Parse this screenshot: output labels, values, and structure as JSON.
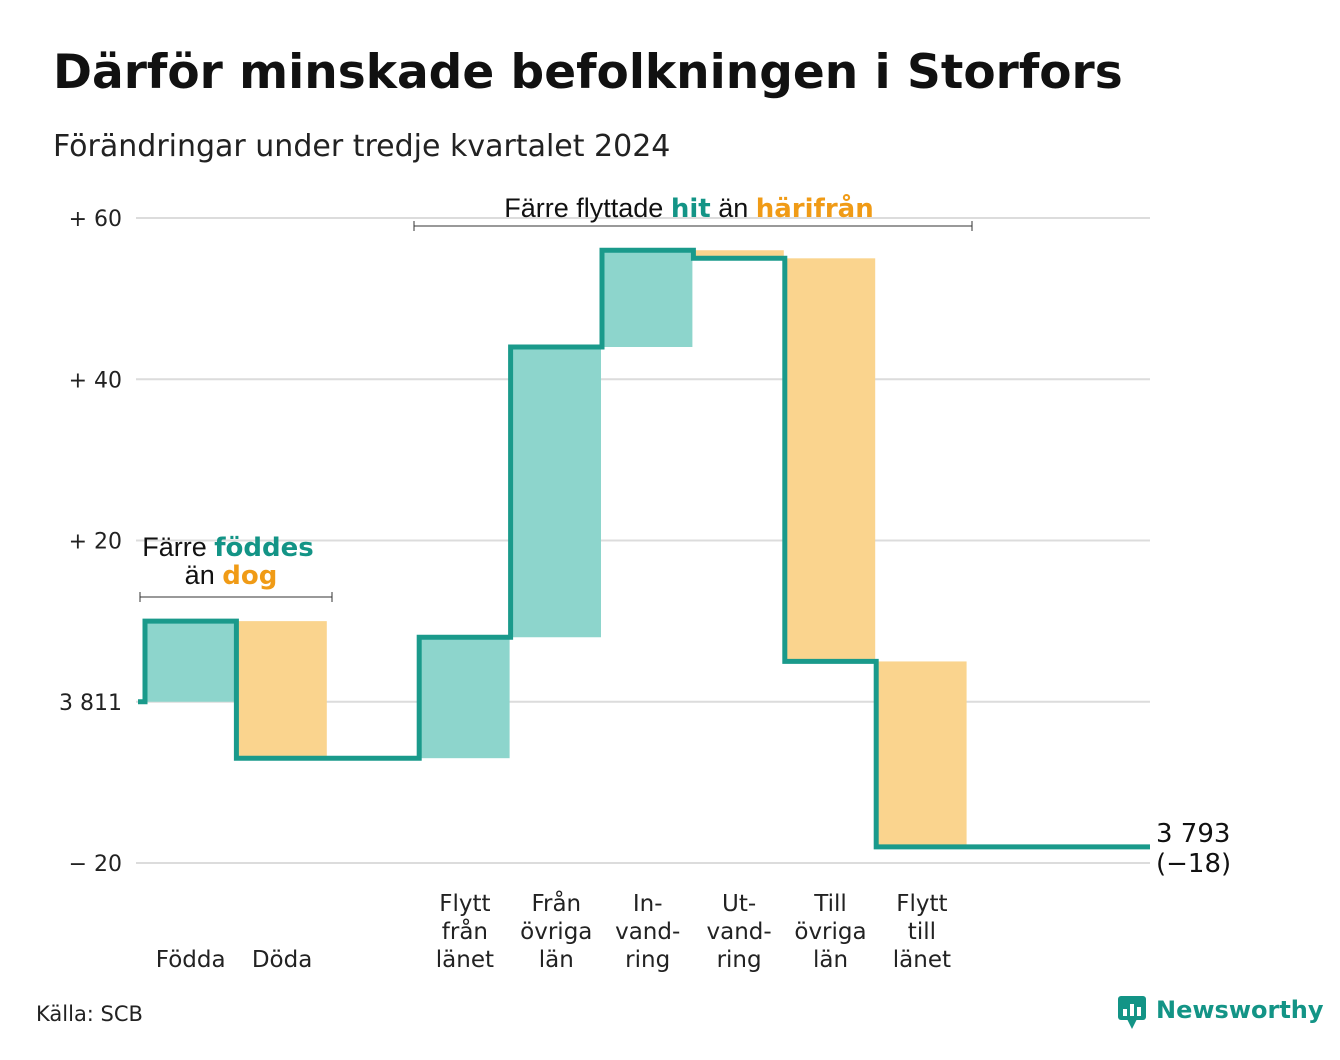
{
  "title": "Därför minskade befolkningen i Storfors",
  "subtitle": "Förändringar under tredje kvartalet 2024",
  "source": "Källa: SCB",
  "brand": "Newsworthy",
  "colors": {
    "gain_fill": "#8dd5cc",
    "loss_fill": "#fad48e",
    "line": "#1a9a8b",
    "teal_text": "#139486",
    "orange_text": "#f09b16",
    "grid": "#dcdcdc"
  },
  "annotations": {
    "births": {
      "line1_a": "Färre ",
      "line1_b": "föddes",
      "line2_a": "än ",
      "line2_b": "dog"
    },
    "moves": {
      "part_a": "Färre flyttade ",
      "part_b": "hit",
      "part_c": " än ",
      "part_d": "härifrån"
    }
  },
  "end_label": {
    "value": "3 793",
    "change": "(−18)"
  },
  "chart_data": {
    "type": "waterfall",
    "title": "Därför minskade befolkningen i Storfors",
    "subtitle": "Förändringar under tredje kvartalet 2024",
    "start_value": 3811,
    "end_value": 3793,
    "net_change": -18,
    "ylim": [
      -20,
      60
    ],
    "y_ticks": [
      {
        "value": -20,
        "label": "− 20"
      },
      {
        "value": 0,
        "label": "3 811"
      },
      {
        "value": 20,
        "label": "+ 20"
      },
      {
        "value": 40,
        "label": "+ 40"
      },
      {
        "value": 60,
        "label": "+ 60"
      }
    ],
    "grid": true,
    "steps": [
      {
        "category": "Födda",
        "label_lines": [
          "Födda"
        ],
        "change": 10,
        "kind": "gain"
      },
      {
        "category": "Döda",
        "label_lines": [
          "Döda"
        ],
        "change": -17,
        "kind": "loss"
      },
      {
        "category": "",
        "label_lines": [],
        "change": 0,
        "kind": "gap"
      },
      {
        "category": "Flytt från länet",
        "label_lines": [
          "Flytt",
          "från",
          "länet"
        ],
        "change": 15,
        "kind": "gain"
      },
      {
        "category": "Från övriga län",
        "label_lines": [
          "Från",
          "övriga",
          "län"
        ],
        "change": 36,
        "kind": "gain"
      },
      {
        "category": "Invandring",
        "label_lines": [
          "In-",
          "vand-",
          "ring"
        ],
        "change": 12,
        "kind": "gain"
      },
      {
        "category": "Utvandring",
        "label_lines": [
          "Ut-",
          "vand-",
          "ring"
        ],
        "change": -1,
        "kind": "loss"
      },
      {
        "category": "Till övriga län",
        "label_lines": [
          "Till",
          "övriga",
          "län"
        ],
        "change": -50,
        "kind": "loss"
      },
      {
        "category": "Flytt till länet",
        "label_lines": [
          "Flytt",
          "till",
          "länet"
        ],
        "change": -23,
        "kind": "loss"
      }
    ]
  }
}
